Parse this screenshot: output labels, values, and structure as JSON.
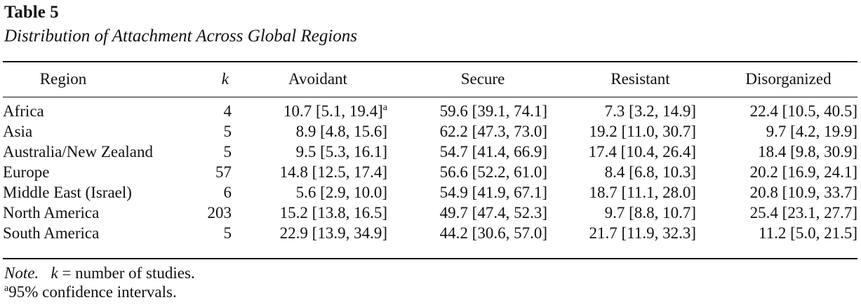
{
  "table": {
    "label": "Table 5",
    "title": "Distribution of Attachment Across Global Regions",
    "headers": {
      "region": "Region",
      "k": "k",
      "avoidant": "Avoidant",
      "secure": "Secure",
      "resistant": "Resistant",
      "disorganized": "Disorganized"
    },
    "rows": [
      {
        "region": "Africa",
        "k": "4",
        "avoidant": "10.7 [5.1, 19.4]",
        "avoidant_sup": "a",
        "secure": "59.6 [39.1, 74.1]",
        "resistant": "7.3 [3.2, 14.9]",
        "disorganized": "22.4 [10.5, 40.5]"
      },
      {
        "region": "Asia",
        "k": "5",
        "avoidant": "8.9 [4.8, 15.6]",
        "avoidant_sup": "",
        "secure": "62.2 [47.3, 73.0]",
        "resistant": "19.2 [11.0, 30.7]",
        "disorganized": "9.7 [4.2, 19.9]"
      },
      {
        "region": "Australia/New Zealand",
        "k": "5",
        "avoidant": "9.5 [5.3, 16.1]",
        "avoidant_sup": "",
        "secure": "54.7 [41.4, 66.9]",
        "resistant": "17.4 [10.4, 26.4]",
        "disorganized": "18.4 [9.8, 30.9]"
      },
      {
        "region": "Europe",
        "k": "57",
        "avoidant": "14.8 [12.5, 17.4]",
        "avoidant_sup": "",
        "secure": "56.6 [52.2, 61.0]",
        "resistant": "8.4 [6.8, 10.3]",
        "disorganized": "20.2 [16.9, 24.1]"
      },
      {
        "region": "Middle East (Israel)",
        "k": "6",
        "avoidant": "5.6 [2.9, 10.0]",
        "avoidant_sup": "",
        "secure": "54.9 [41.9, 67.1]",
        "resistant": "18.7 [11.1, 28.0]",
        "disorganized": "20.8 [10.9, 33.7]"
      },
      {
        "region": "North America",
        "k": "203",
        "avoidant": "15.2 [13.8, 16.5]",
        "avoidant_sup": "",
        "secure": "49.7 [47.4, 52.3]",
        "resistant": "9.7 [8.8, 10.7]",
        "disorganized": "25.4 [23.1, 27.7]"
      },
      {
        "region": "South America",
        "k": "5",
        "avoidant": "22.9 [13.9, 34.9]",
        "avoidant_sup": "",
        "secure": "44.2 [30.6, 57.0]",
        "resistant": "21.7 [11.9, 32.3]",
        "disorganized": "11.2 [5.0, 21.5]"
      }
    ],
    "note": {
      "label": "Note.",
      "variable": "k",
      "text": "= number of studies."
    },
    "footnote": {
      "marker": "a",
      "text": "95% confidence intervals."
    }
  }
}
